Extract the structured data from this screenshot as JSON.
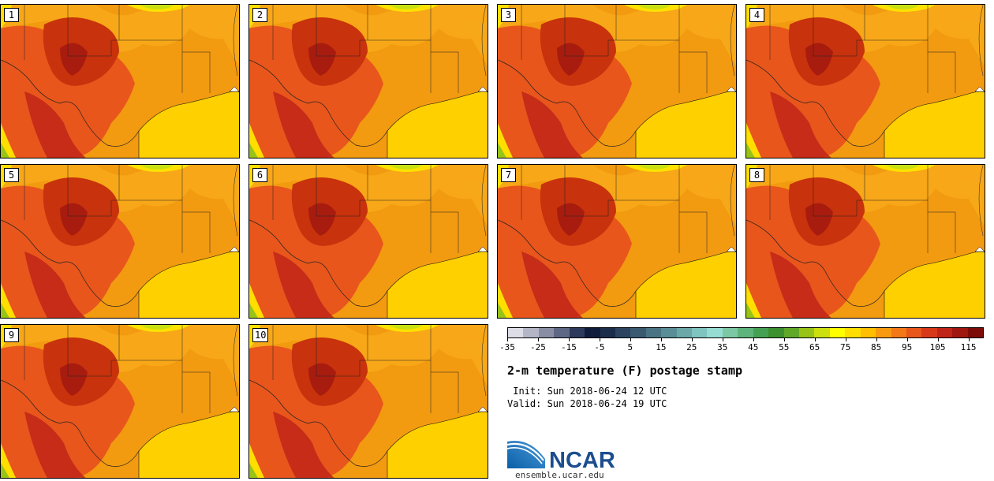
{
  "panels": [
    {
      "label": "1"
    },
    {
      "label": "2"
    },
    {
      "label": "3"
    },
    {
      "label": "4"
    },
    {
      "label": "5"
    },
    {
      "label": "6"
    },
    {
      "label": "7"
    },
    {
      "label": "8"
    },
    {
      "label": "9"
    },
    {
      "label": "10"
    }
  ],
  "colorbar": {
    "colors": [
      "#dcdde6",
      "#b4b6c6",
      "#8a8ea4",
      "#5e6784",
      "#2e3a5c",
      "#101c3c",
      "#1c2d4c",
      "#2c4460",
      "#3a5a72",
      "#4a7484",
      "#5a8e96",
      "#6ca8a8",
      "#80c4c0",
      "#96dcd2",
      "#7cc8a4",
      "#5eb47c",
      "#44a052",
      "#3c9030",
      "#60a828",
      "#98c418",
      "#cce010",
      "#ffff00",
      "#ffde00",
      "#ffbe00",
      "#f89a10",
      "#f27818",
      "#e8561c",
      "#d8381a",
      "#c02418",
      "#a01610",
      "#7c0c08"
    ],
    "tick_labels": [
      "-35",
      "-25",
      "-15",
      "-5",
      "5",
      "15",
      "25",
      "35",
      "45",
      "55",
      "65",
      "75",
      "85",
      "95",
      "105",
      "115"
    ]
  },
  "title": "2-m temperature (F) postage stamp",
  "init": " Init: Sun 2018-06-24 12 UTC",
  "valid": "Valid: Sun 2018-06-24 19 UTC",
  "logo_text": "NCAR",
  "website": "ensemble.ucar.edu"
}
